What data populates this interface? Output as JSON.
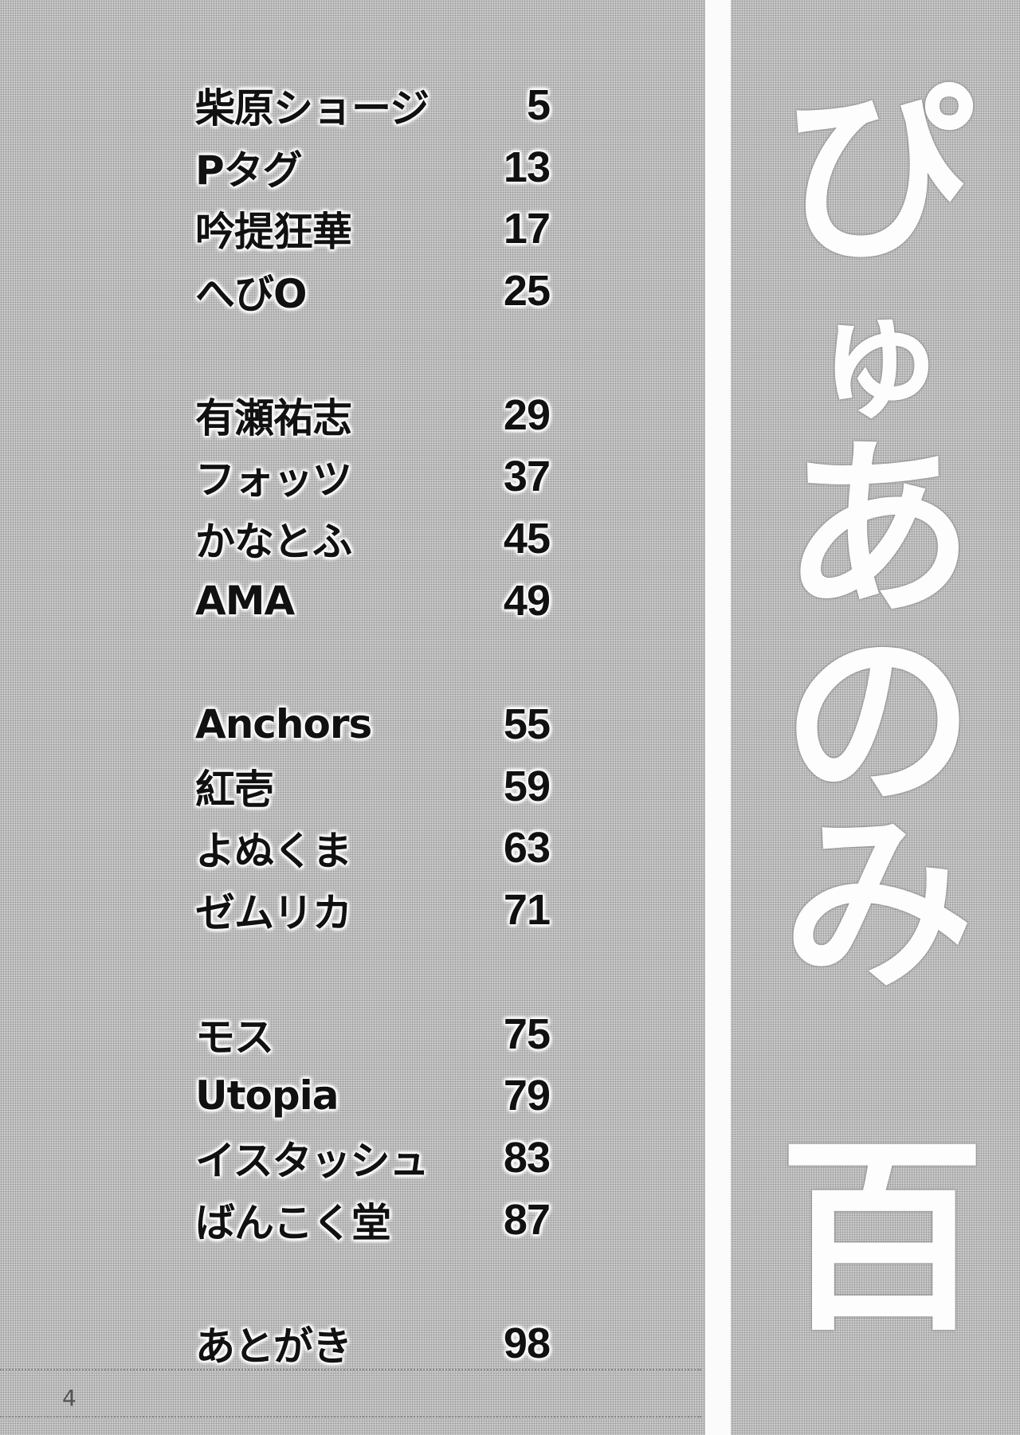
{
  "toc": {
    "entries": [
      {
        "name": "柴原ショージ",
        "page": "5"
      },
      {
        "name": "Pタグ",
        "page": "13"
      },
      {
        "name": "吟提狂華",
        "page": "17"
      },
      {
        "name": "へびO",
        "page": "25"
      },
      {
        "name": "有瀬祐志",
        "page": "29"
      },
      {
        "name": "フォッツ",
        "page": "37"
      },
      {
        "name": "かなとふ",
        "page": "45"
      },
      {
        "name": "AMA",
        "page": "49"
      },
      {
        "name": "Anchors",
        "page": "55"
      },
      {
        "name": "紅壱",
        "page": "59"
      },
      {
        "name": "よぬくま",
        "page": "63"
      },
      {
        "name": "ゼムリカ",
        "page": "71"
      },
      {
        "name": "モス",
        "page": "75"
      },
      {
        "name": "Utopia",
        "page": "79"
      },
      {
        "name": "イスタッシュ",
        "page": "83"
      },
      {
        "name": "ばんこく堂",
        "page": "87"
      },
      {
        "name": "あとがき",
        "page": "98"
      }
    ]
  },
  "title": {
    "chars": [
      "ぴ",
      "ゅ",
      "あ",
      "の",
      "み",
      "百"
    ]
  },
  "page_number": "4"
}
